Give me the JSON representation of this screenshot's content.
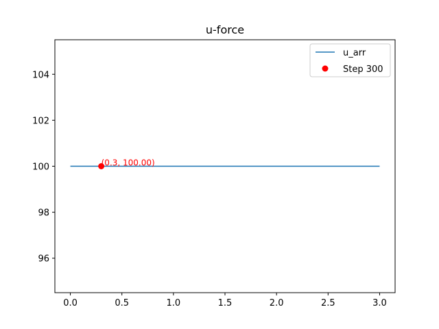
{
  "chart_data": {
    "type": "line",
    "title": "u-force",
    "xlabel": "",
    "ylabel": "",
    "xlim": [
      -0.15,
      3.15
    ],
    "ylim": [
      94.5,
      105.5
    ],
    "xticks": [
      0.0,
      0.5,
      1.0,
      1.5,
      2.0,
      2.5,
      3.0
    ],
    "xtick_labels": [
      "0.0",
      "0.5",
      "1.0",
      "1.5",
      "2.0",
      "2.5",
      "3.0"
    ],
    "yticks": [
      96,
      98,
      100,
      102,
      104
    ],
    "ytick_labels": [
      "96",
      "98",
      "100",
      "102",
      "104"
    ],
    "grid": false,
    "legend_position": "top-right",
    "series": [
      {
        "name": "u_arr",
        "type": "line",
        "color": "#1f77b4",
        "x": [
          0.0,
          3.0
        ],
        "y": [
          100.0,
          100.0
        ]
      },
      {
        "name": "Step 300",
        "type": "scatter",
        "color": "#ff0000",
        "x": [
          0.3
        ],
        "y": [
          100.0
        ]
      }
    ],
    "annotations": [
      {
        "text": "(0.3, 100.00)",
        "x": 0.3,
        "y": 100.0,
        "color": "#ff0000"
      }
    ]
  }
}
